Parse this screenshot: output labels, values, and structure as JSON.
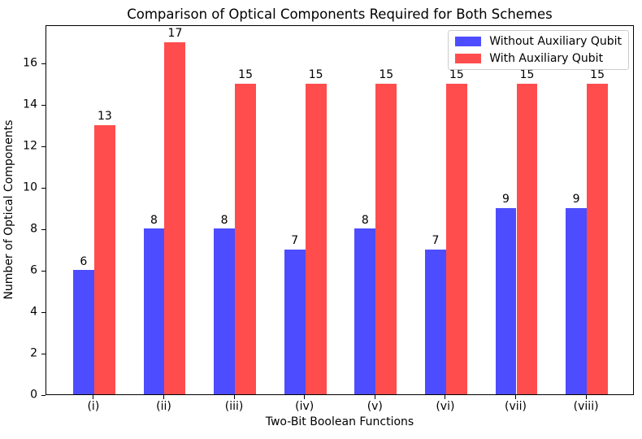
{
  "chart_data": {
    "type": "bar",
    "title": "Comparison of Optical Components Required for Both Schemes",
    "xlabel": "Two-Bit Boolean Functions",
    "ylabel": "Number of Optical Components",
    "categories": [
      "(i)",
      "(ii)",
      "(iii)",
      "(iv)",
      "(v)",
      "(vi)",
      "(vii)",
      "(viii)"
    ],
    "series": [
      {
        "name": "Without Auxiliary Qubit",
        "color": "#4d4dff",
        "values": [
          6,
          8,
          8,
          7,
          8,
          7,
          9,
          9
        ]
      },
      {
        "name": "With Auxiliary Qubit",
        "color": "#ff4d4d",
        "values": [
          13,
          17,
          15,
          15,
          15,
          15,
          15,
          15
        ]
      }
    ],
    "bar_labels": true,
    "yticks": [
      0,
      2,
      4,
      6,
      8,
      10,
      12,
      14,
      16
    ],
    "ylim": [
      0,
      17.85
    ],
    "xlim": [
      -0.68,
      7.68
    ],
    "bar_width_units": 0.3,
    "grid": false,
    "legend_position": "upper right"
  },
  "frame": {
    "background": "#ffffff",
    "spine_color": "#000000",
    "legend_border_color": "#cccccc"
  }
}
